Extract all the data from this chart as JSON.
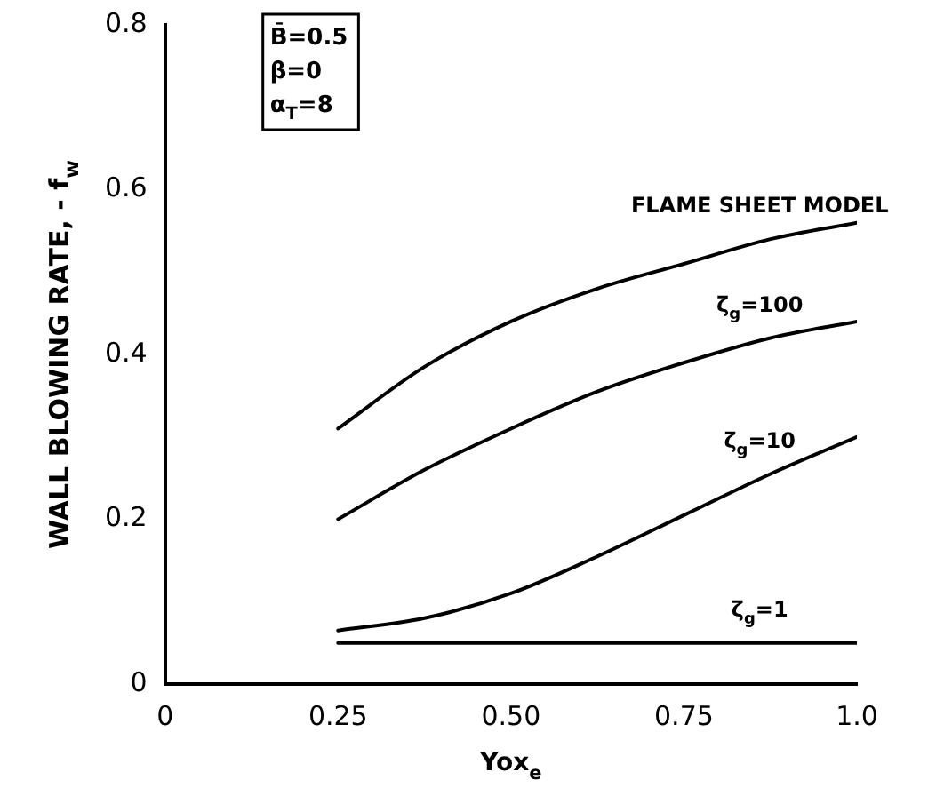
{
  "chart_data": {
    "type": "line",
    "xlabel": "Yox$_{e}$",
    "ylabel": "WALL BLOWING RATE, - f$_{w}$",
    "x": [
      0.25,
      0.375,
      0.5,
      0.625,
      0.75,
      0.875,
      1.0
    ],
    "series": [
      {
        "name": "FLAME SHEET MODEL",
        "color": "#000000",
        "values": [
          0.31,
          0.385,
          0.44,
          0.48,
          0.51,
          0.54,
          0.56
        ]
      },
      {
        "name": "ζ$_{g}$=100",
        "color": "#000000",
        "values": [
          0.2,
          0.26,
          0.31,
          0.355,
          0.39,
          0.42,
          0.44
        ]
      },
      {
        "name": "ζ$_{g}$=10",
        "color": "#000000",
        "values": [
          0.065,
          0.08,
          0.11,
          0.155,
          0.205,
          0.255,
          0.3
        ]
      },
      {
        "name": "ζ$_{g}$=1",
        "color": "#000000",
        "values": [
          0.05,
          0.05,
          0.05,
          0.05,
          0.05,
          0.05,
          0.05
        ]
      }
    ],
    "xlim": [
      0,
      1.0
    ],
    "ylim": [
      0,
      0.8
    ],
    "xticks": [
      0,
      {
        "value": 0.25,
        "label": "0.25"
      },
      {
        "value": 0.5,
        "label": "0.50"
      },
      {
        "value": 0.75,
        "label": "0.75"
      },
      {
        "value": 1.0,
        "label": "1.0"
      }
    ],
    "yticks": [
      0,
      0.2,
      0.4,
      0.6,
      0.8
    ],
    "grid": false,
    "legend": false,
    "marker": "none",
    "line_style": "solid",
    "annotations": [
      "B̄=0.5",
      "β=0",
      "α$_{T}$=8"
    ]
  }
}
